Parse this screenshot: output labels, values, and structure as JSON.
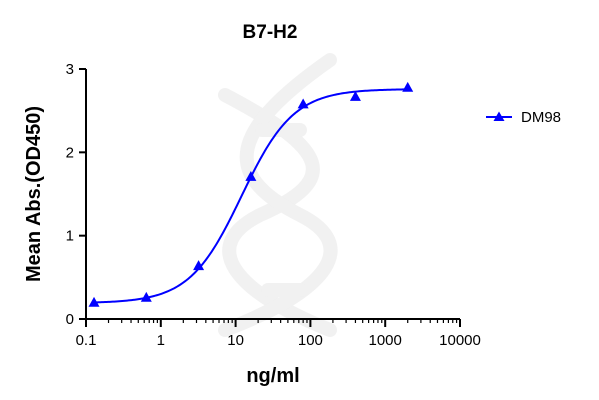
{
  "chart_data": {
    "type": "line",
    "title": "B7-H2",
    "xlabel": "ng/ml",
    "ylabel": "Mean Abs.(OD450)",
    "x_scale": "log",
    "xlim": [
      0.1,
      10000
    ],
    "ylim": [
      0,
      3
    ],
    "x_ticks": [
      0.1,
      1,
      10,
      100,
      1000,
      10000
    ],
    "x_tick_labels": [
      "0.1",
      "1",
      "10",
      "100",
      "1000",
      "10000"
    ],
    "y_ticks": [
      0,
      1,
      2,
      3
    ],
    "y_tick_labels": [
      "0",
      "1",
      "2",
      "3"
    ],
    "grid": false,
    "legend_position": "right",
    "series": [
      {
        "name": "DM98",
        "color": "#0000ff",
        "marker": "triangle",
        "x": [
          0.128,
          0.64,
          3.2,
          16,
          80,
          400,
          2000
        ],
        "y": [
          0.2,
          0.26,
          0.64,
          1.71,
          2.58,
          2.67,
          2.78
        ]
      }
    ],
    "fit_curve": {
      "model": "4PL",
      "bottom": 0.19,
      "top": 2.76,
      "ec50": 12,
      "hill": 1.25
    }
  }
}
